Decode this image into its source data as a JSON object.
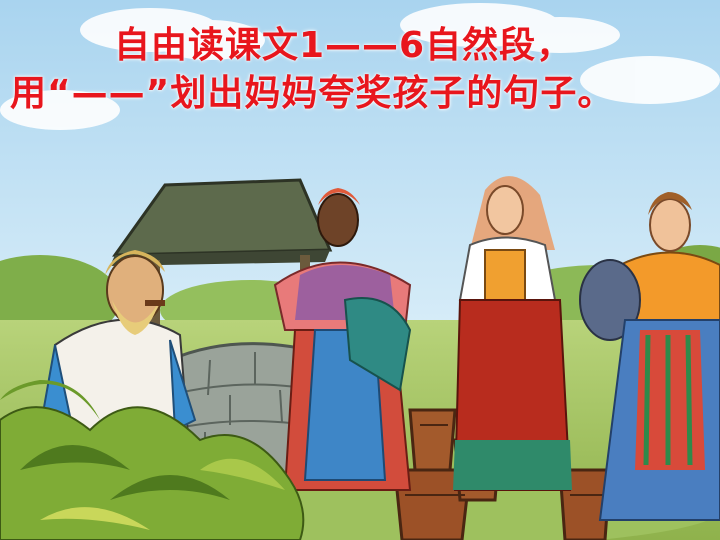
{
  "slide": {
    "instruction_text": "自由读课文1——6自然段，用“——”划出妈妈夸奖孩子的句子。"
  },
  "colors": {
    "text": "#e8161d",
    "sky_top": "#a9d4ef",
    "sky_bottom": "#eaf5fb",
    "grass": "#a9c86a",
    "foliage": "#6f9a2c"
  },
  "illustration": {
    "scene": "village-well-scene",
    "figures": [
      "old-man-figure",
      "woman-blue-apron-figure",
      "woman-red-dress-figure",
      "woman-orange-dress-figure"
    ]
  }
}
